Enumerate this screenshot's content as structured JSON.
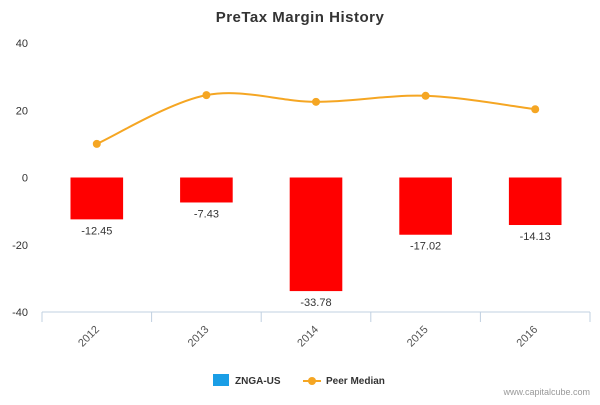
{
  "chart_data": {
    "type": "bar",
    "title": "PreTax Margin History",
    "categories": [
      "2012",
      "2013",
      "2014",
      "2015",
      "2016"
    ],
    "ylim": [
      -40,
      40
    ],
    "yticks": [
      "40",
      "20",
      "0",
      "-20",
      "-40"
    ],
    "grid": false,
    "legend_position": "bottom",
    "series": [
      {
        "name": "ZNGA-US",
        "type": "bar",
        "values": [
          -12.45,
          -7.43,
          -33.78,
          -17.02,
          -14.13
        ],
        "data_labels": [
          "-12.45",
          "-7.43",
          "-33.78",
          "-17.02",
          "-14.13"
        ],
        "color": "#ff0000",
        "legend_color": "#1a9ee6"
      },
      {
        "name": "Peer Median",
        "type": "line",
        "values": [
          10.0,
          24.5,
          22.5,
          24.3,
          20.3
        ],
        "color": "#f5a623"
      }
    ]
  },
  "watermark": "www.capitalcube.com"
}
